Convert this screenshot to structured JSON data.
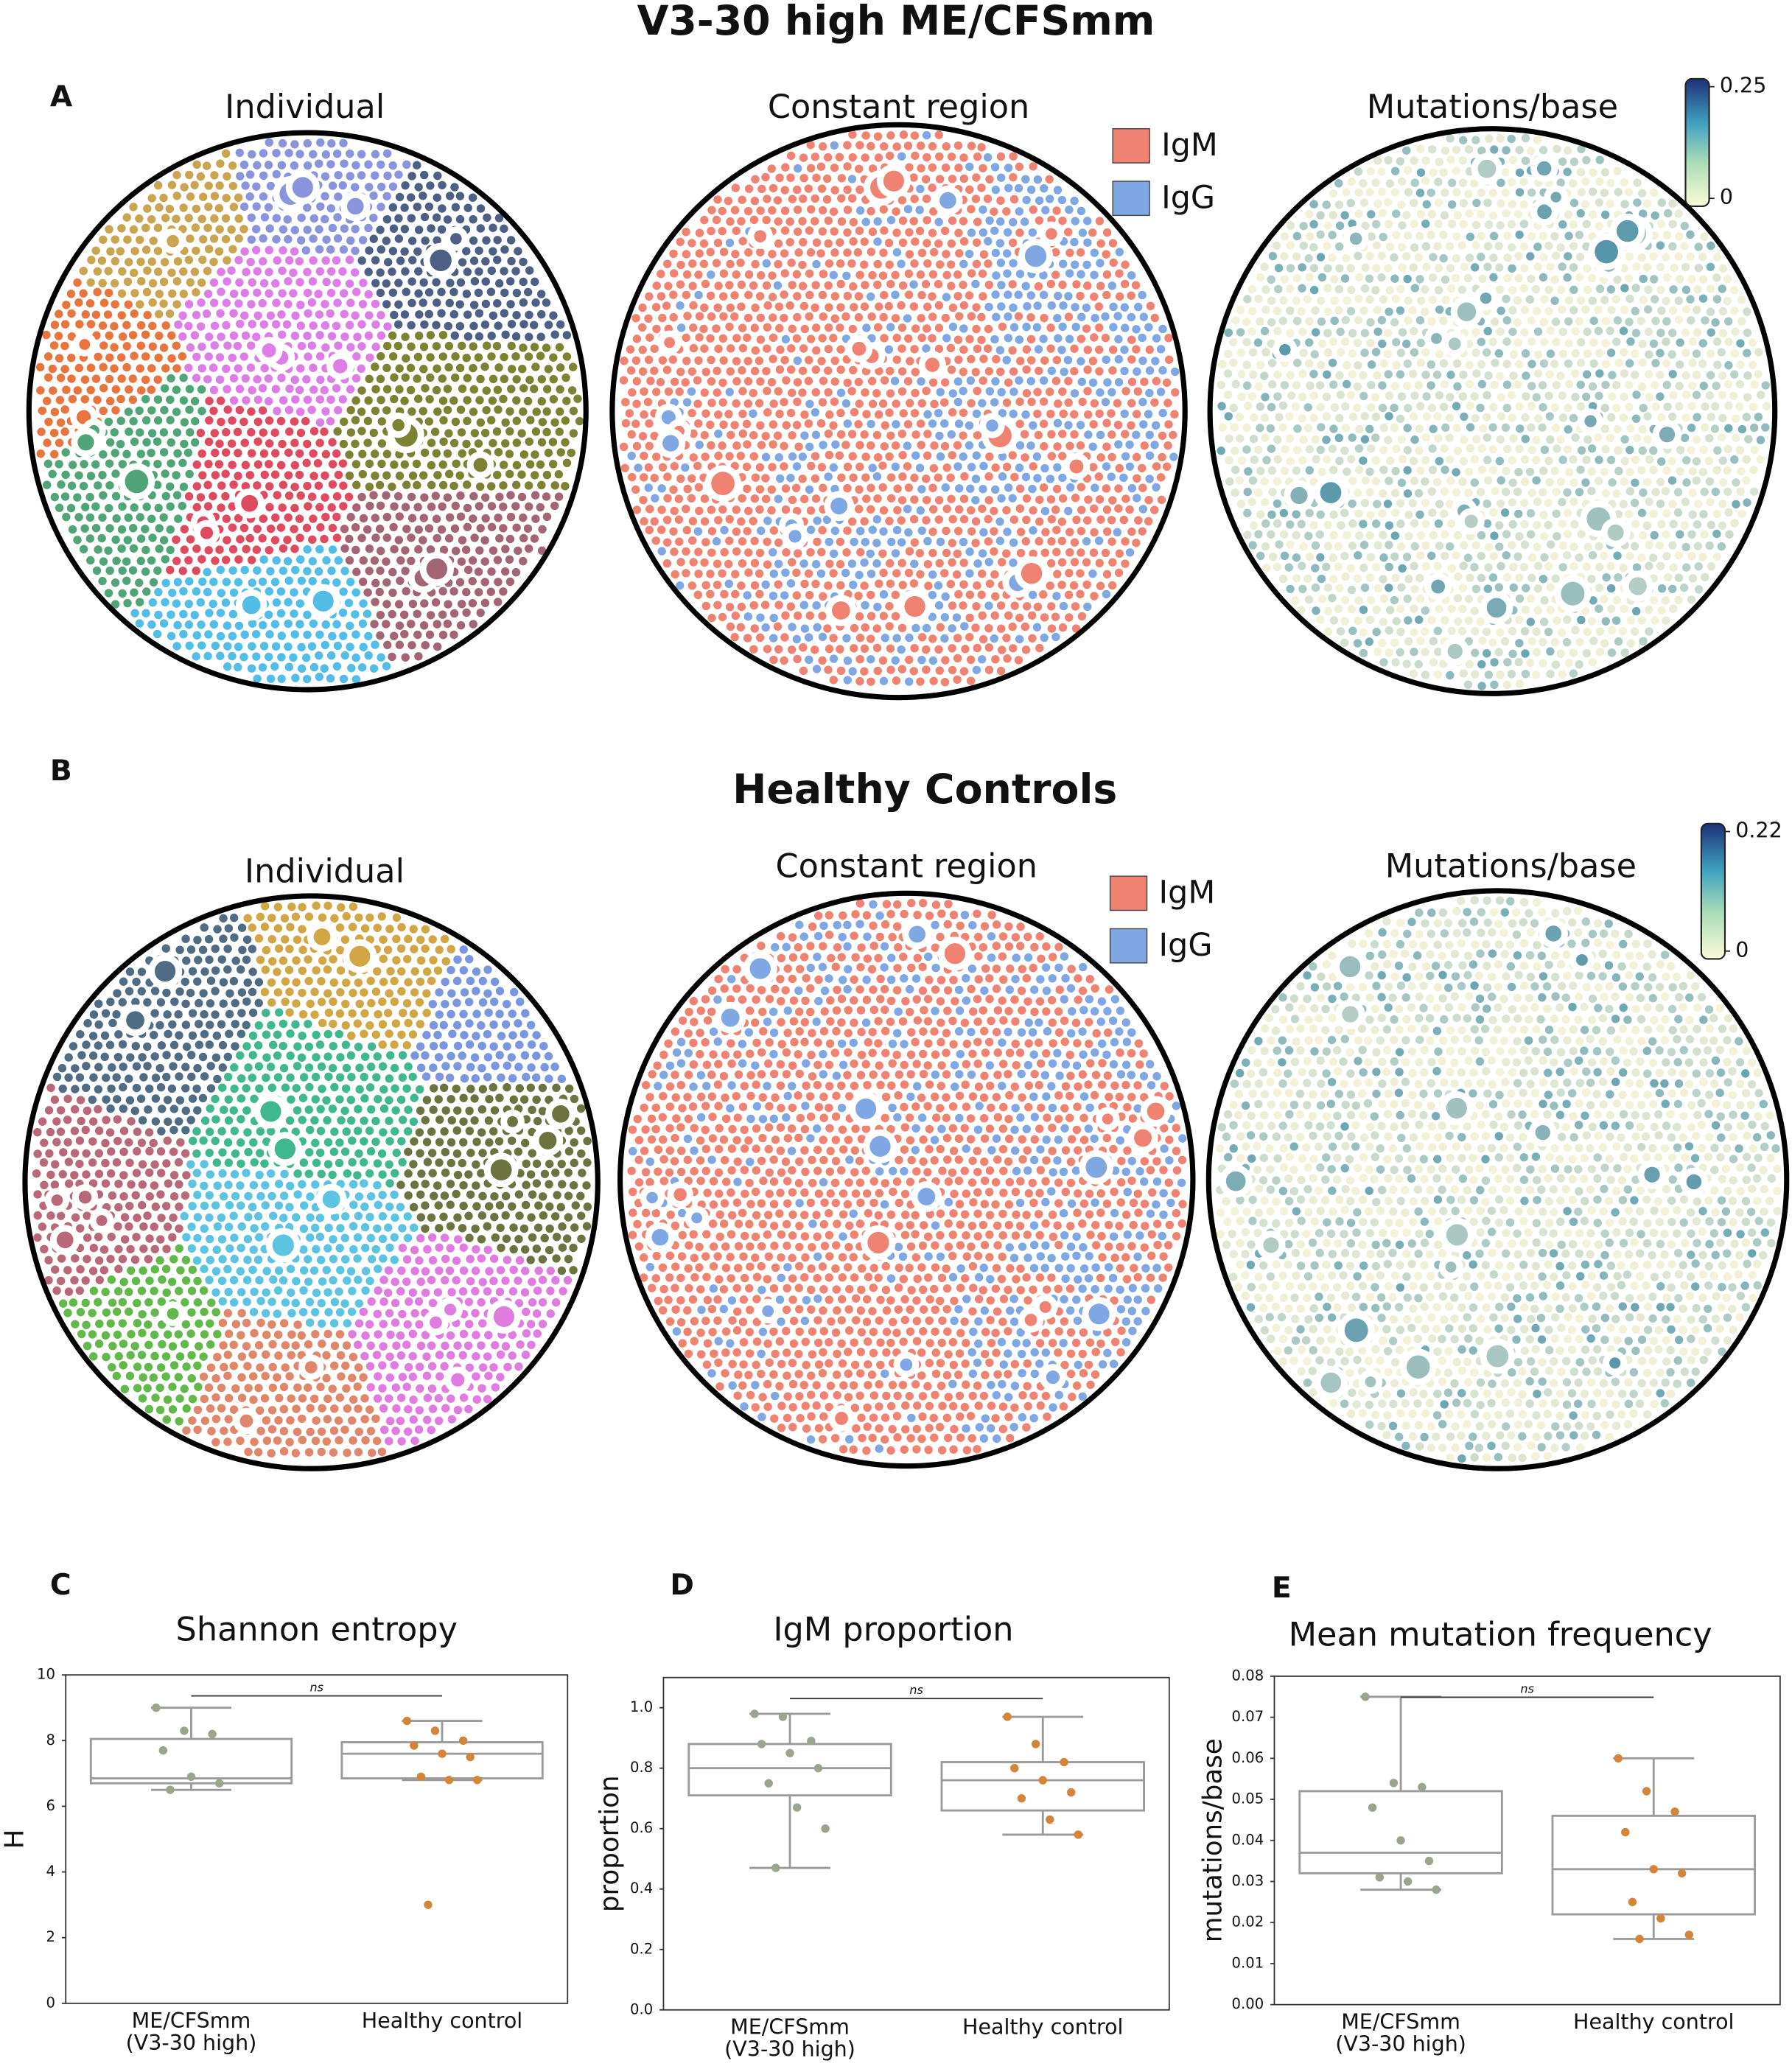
{
  "panel_labels": [
    "A",
    "B",
    "C",
    "D",
    "E"
  ],
  "rows": [
    {
      "title": "V3-30 high ME/CFSmm",
      "panel_titles": [
        "Individual",
        "Constant region",
        "Mutations/base"
      ],
      "legend": [
        {
          "name": "IgM",
          "color": "#ef8270"
        },
        {
          "name": "IgG",
          "color": "#7ea7e3"
        }
      ],
      "colorbar_ticks": [
        0,
        0.25
      ]
    },
    {
      "title": "Healthy Controls",
      "panel_titles": [
        "Individual",
        "Constant region",
        "Mutations/base"
      ],
      "legend": [
        {
          "name": "IgM",
          "color": "#ef8270"
        },
        {
          "name": "IgG",
          "color": "#7ea7e3"
        }
      ],
      "colorbar_ticks": [
        0,
        0.22
      ]
    }
  ],
  "chart_data": [
    {
      "type": "box",
      "title": "Shannon entropy",
      "ylabel": "H",
      "annotation": "ns",
      "categories": [
        "ME/CFSmm\n(V3-30 high)",
        "Healthy control"
      ],
      "ylim": [
        0,
        10
      ],
      "yticks": [
        0,
        2,
        4,
        6,
        8,
        10
      ],
      "boxes": [
        {
          "color": "#9aa58d",
          "low": 6.5,
          "q1": 6.7,
          "median": 6.85,
          "q3": 8.05,
          "high": 9.0,
          "points": [
            9.0,
            8.3,
            8.2,
            7.7,
            6.9,
            6.7,
            6.5
          ]
        },
        {
          "color": "#d4853a",
          "low": 6.8,
          "q1": 6.85,
          "median": 7.6,
          "q3": 7.95,
          "high": 8.6,
          "points": [
            8.6,
            8.3,
            8.0,
            7.85,
            7.6,
            7.5,
            6.9,
            6.8,
            6.8,
            3.0
          ]
        }
      ]
    },
    {
      "type": "box",
      "title": "IgM proportion",
      "ylabel": "proportion",
      "annotation": "ns",
      "categories": [
        "ME/CFSmm\n(V3-30 high)",
        "Healthy control"
      ],
      "ylim": [
        0,
        1.1
      ],
      "yticks": [
        {
          "value": 0,
          "label": "0.0"
        },
        0.2,
        0.4,
        0.6,
        0.8,
        {
          "value": 1,
          "label": "1.0"
        }
      ],
      "boxes": [
        {
          "color": "#9aa58d",
          "low": 0.47,
          "q1": 0.71,
          "median": 0.8,
          "q3": 0.88,
          "high": 0.98,
          "points": [
            0.98,
            0.97,
            0.89,
            0.88,
            0.85,
            0.8,
            0.75,
            0.67,
            0.6,
            0.47
          ]
        },
        {
          "color": "#d4853a",
          "low": 0.58,
          "q1": 0.66,
          "median": 0.76,
          "q3": 0.82,
          "high": 0.97,
          "points": [
            0.97,
            0.88,
            0.82,
            0.8,
            0.76,
            0.72,
            0.7,
            0.63,
            0.58
          ]
        }
      ]
    },
    {
      "type": "box",
      "title": "Mean mutation frequency",
      "ylabel": "mutations/base",
      "annotation": "ns",
      "categories": [
        "ME/CFSmm\n(V3-30 high)",
        "Healthy control"
      ],
      "ylim": [
        0,
        0.08
      ],
      "yticks": [
        {
          "value": 0,
          "label": "0.00"
        },
        0.01,
        0.02,
        0.03,
        0.04,
        0.05,
        0.06,
        0.07,
        0.08
      ],
      "boxes": [
        {
          "color": "#9aa58d",
          "low": 0.028,
          "q1": 0.032,
          "median": 0.037,
          "q3": 0.052,
          "high": 0.075,
          "points": [
            0.075,
            0.054,
            0.053,
            0.048,
            0.04,
            0.035,
            0.031,
            0.03,
            0.028
          ]
        },
        {
          "color": "#d4853a",
          "low": 0.016,
          "q1": 0.022,
          "median": 0.033,
          "q3": 0.046,
          "high": 0.06,
          "points": [
            0.06,
            0.052,
            0.047,
            0.042,
            0.033,
            0.032,
            0.025,
            0.021,
            0.017,
            0.016
          ]
        }
      ]
    }
  ]
}
